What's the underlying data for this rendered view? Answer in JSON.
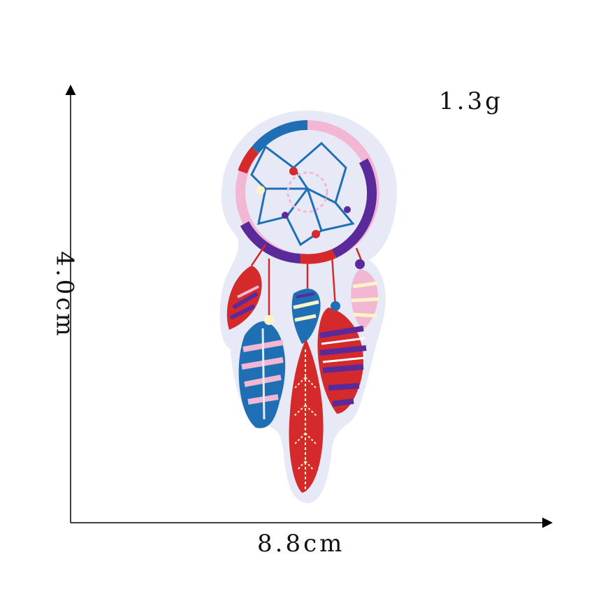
{
  "product": {
    "weight": "1.3g",
    "width": "8.8cm",
    "height": "4.0cm"
  },
  "colors": {
    "felt": "#e7e9f6",
    "blue": "#1f6fb5",
    "purple": "#5b2a9a",
    "red": "#d42a2c",
    "pink": "#f2b7d3",
    "cream": "#fff3c8"
  }
}
